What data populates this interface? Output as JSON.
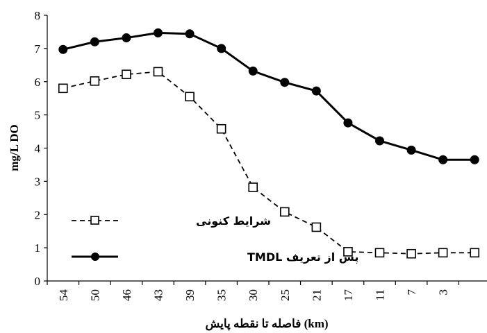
{
  "chart_data": {
    "type": "line",
    "title": "",
    "xlabel": "فاصله تا نقطه پایش (km)",
    "ylabel": "mg/L DO",
    "categories": [
      "54",
      "50",
      "46",
      "43",
      "39",
      "35",
      "30",
      "25",
      "21",
      "17",
      "11",
      "7",
      "3",
      ""
    ],
    "ylim": [
      0,
      8
    ],
    "yticks": [
      "0",
      "1",
      "2",
      "3",
      "4",
      "5",
      "6",
      "7",
      "8"
    ],
    "grid": false,
    "legend_position": "bottom-left",
    "series": [
      {
        "name": "شرایط کنونی",
        "style": "dashed",
        "marker": "open-square",
        "color": "#000000",
        "values": [
          5.8,
          6.02,
          6.22,
          6.3,
          5.55,
          4.58,
          2.82,
          2.08,
          1.62,
          0.88,
          0.85,
          0.82,
          0.85,
          0.85
        ]
      },
      {
        "name": "پس از تعریف TMDL",
        "style": "solid",
        "marker": "filled-circle",
        "color": "#000000",
        "values": [
          6.97,
          7.2,
          7.32,
          7.47,
          7.44,
          7.0,
          6.32,
          5.98,
          5.72,
          4.76,
          4.22,
          3.94,
          3.65,
          3.65
        ]
      }
    ]
  }
}
